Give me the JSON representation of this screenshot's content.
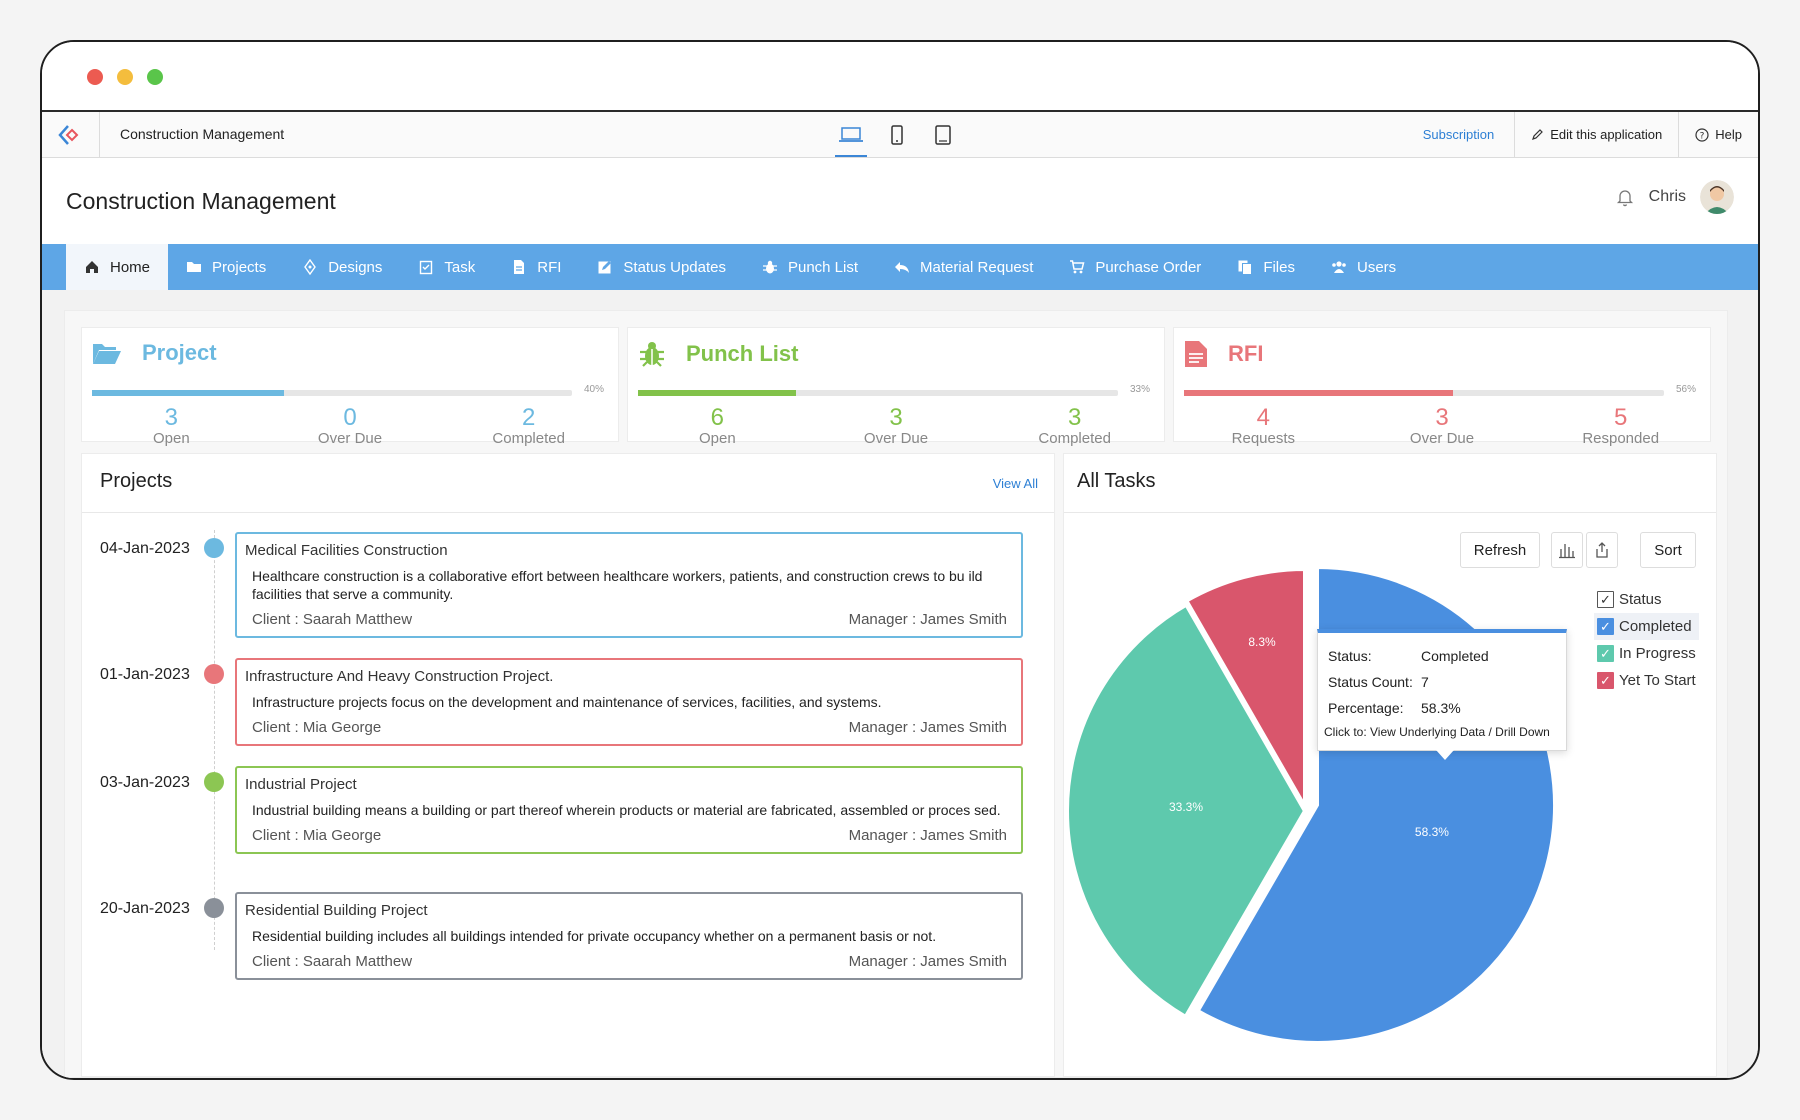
{
  "app": {
    "name": "Construction Management",
    "subscription": "Subscription",
    "edit": "Edit this application",
    "help": "Help"
  },
  "header": {
    "title": "Construction Management",
    "user": "Chris"
  },
  "nav": [
    {
      "label": "Home",
      "icon": "home-icon"
    },
    {
      "label": "Projects",
      "icon": "folder-icon"
    },
    {
      "label": "Designs",
      "icon": "pen-tool-icon"
    },
    {
      "label": "Task",
      "icon": "clipboard-icon"
    },
    {
      "label": "RFI",
      "icon": "document-icon"
    },
    {
      "label": "Status Updates",
      "icon": "edit-icon"
    },
    {
      "label": "Punch List",
      "icon": "bug-icon"
    },
    {
      "label": "Material Request",
      "icon": "reply-icon"
    },
    {
      "label": "Purchase Order",
      "icon": "cart-icon"
    },
    {
      "label": "Files",
      "icon": "files-icon"
    },
    {
      "label": "Users",
      "icon": "users-icon"
    }
  ],
  "stats": [
    {
      "title": "Project",
      "color": "#6cb9e0",
      "progress": 0.4,
      "pct": "40%",
      "items": [
        {
          "value": "3",
          "label": "Open"
        },
        {
          "value": "0",
          "label": "Over Due"
        },
        {
          "value": "2",
          "label": "Completed"
        }
      ]
    },
    {
      "title": "Punch List",
      "color": "#82c24a",
      "progress": 0.33,
      "pct": "33%",
      "items": [
        {
          "value": "6",
          "label": "Open"
        },
        {
          "value": "3",
          "label": "Over Due"
        },
        {
          "value": "3",
          "label": "Completed"
        }
      ]
    },
    {
      "title": "RFI",
      "color": "#e8767a",
      "progress": 0.56,
      "pct": "56%",
      "items": [
        {
          "value": "4",
          "label": "Requests"
        },
        {
          "value": "3",
          "label": "Over Due"
        },
        {
          "value": "5",
          "label": "Responded"
        }
      ]
    }
  ],
  "projects_panel": {
    "title": "Projects",
    "view_all": "View All",
    "items": [
      {
        "date": "04-Jan-2023",
        "color": "#6cb9e0",
        "title": "Medical Facilities Construction",
        "desc": "Healthcare construction is a collaborative effort between healthcare workers, patients, and construction crews to bu ild facilities that serve a community.",
        "client": "Client : Saarah Matthew",
        "manager": "Manager : James Smith"
      },
      {
        "date": "01-Jan-2023",
        "color": "#e8767a",
        "title": "Infrastructure And Heavy Construction Project.",
        "desc": "Infrastructure projects focus on the development and maintenance of services, facilities, and systems.",
        "client": "Client : Mia George",
        "manager": "Manager : James Smith"
      },
      {
        "date": "03-Jan-2023",
        "color": "#8cc653",
        "title": "Industrial Project",
        "desc": "Industrial building means a building or part thereof wherein products or material are fabricated, assembled or proces sed.",
        "client": "Client : Mia George",
        "manager": "Manager : James Smith"
      },
      {
        "date": "20-Jan-2023",
        "color": "#8a9099",
        "title": "Residential Building Project",
        "desc": "Residential building includes all buildings intended for private occupancy whether on a permanent basis or not.",
        "client": "Client : Saarah Matthew",
        "manager": "Manager : James Smith"
      }
    ]
  },
  "tasks_panel": {
    "title": "All Tasks",
    "refresh": "Refresh",
    "sort": "Sort",
    "legend_title": "Status",
    "tooltip": {
      "status_k": "Status:",
      "status_v": "Completed",
      "count_k": "Status Count:",
      "count_v": "7",
      "pct_k": "Percentage:",
      "pct_v": "58.3%",
      "hint": "Click to: View Underlying Data / Drill Down"
    }
  },
  "chart_data": {
    "type": "pie",
    "categories": [
      "Completed",
      "In Progress",
      "Yet To Start"
    ],
    "values": [
      58.3,
      33.3,
      8.3
    ],
    "labels": [
      "58.3%",
      "33.3%",
      "8.3%"
    ],
    "colors": [
      "#4a8fe0",
      "#5ec9ad",
      "#d9566c"
    ],
    "legend_title": "Status",
    "legend_position": "top-right"
  }
}
